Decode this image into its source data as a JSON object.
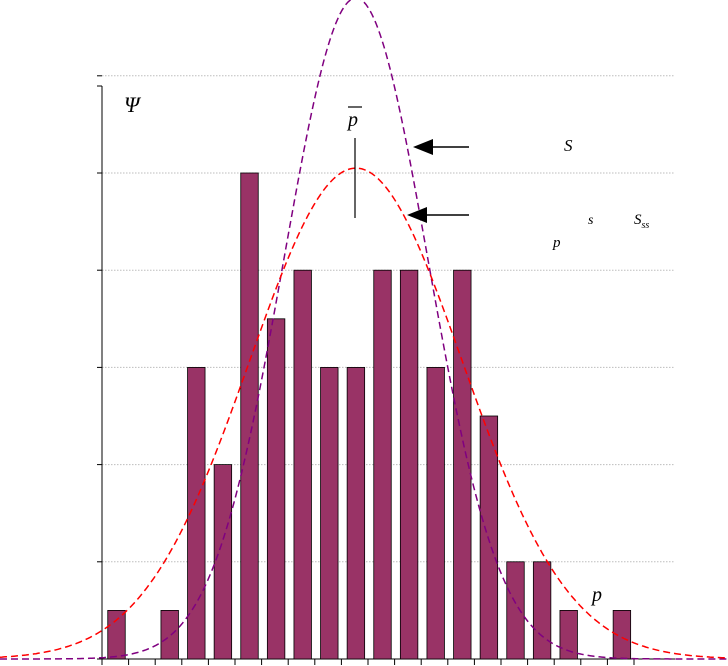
{
  "chart_data": {
    "type": "bar",
    "ylim": [
      0,
      6.5
    ],
    "grid": true,
    "bar_color": "#993366",
    "bar_outline": "#000000",
    "grid_color": "#bdbdbd",
    "bins": [
      {
        "x": 1,
        "value": 0.5
      },
      {
        "x": 2,
        "value": 0
      },
      {
        "x": 3,
        "value": 0.5
      },
      {
        "x": 4,
        "value": 3
      },
      {
        "x": 5,
        "value": 2
      },
      {
        "x": 6,
        "value": 5
      },
      {
        "x": 7,
        "value": 3.5
      },
      {
        "x": 8,
        "value": 4
      },
      {
        "x": 9,
        "value": 3
      },
      {
        "x": 10,
        "value": 3
      },
      {
        "x": 11,
        "value": 4
      },
      {
        "x": 12,
        "value": 4
      },
      {
        "x": 13,
        "value": 3
      },
      {
        "x": 14,
        "value": 4
      },
      {
        "x": 15,
        "value": 2.5
      },
      {
        "x": 16,
        "value": 1
      },
      {
        "x": 17,
        "value": 1
      },
      {
        "x": 18,
        "value": 0.5
      },
      {
        "x": 19,
        "value": 0
      },
      {
        "x": 20,
        "value": 0.5
      }
    ],
    "curves": [
      {
        "color": "#800080",
        "style": "dashed",
        "mean": 10,
        "sd": 2.7,
        "peak": 6.8
      },
      {
        "color": "#ff0000",
        "style": "dashed",
        "mean": 10,
        "sd": 4.0,
        "peak": 5.05
      }
    ],
    "mean_marker_x": 10,
    "annotations": {
      "y_symbol": "Ψ",
      "mean_symbol": "p",
      "label_S": "S",
      "label_p": "p",
      "label_s": "s",
      "label_S_main": "S",
      "label_S_sub": "ss",
      "label_p_axis": "p"
    }
  }
}
